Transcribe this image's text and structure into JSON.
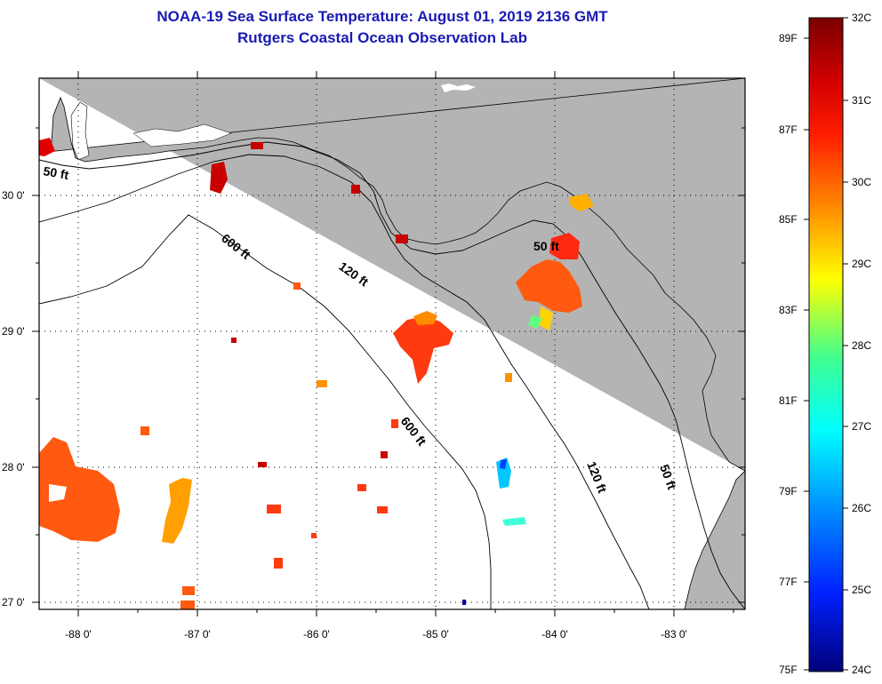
{
  "title": {
    "line1": "NOAA-19 Sea Surface Temperature:  August 01, 2019 2136 GMT",
    "line2": "Rutgers Coastal Ocean Observation Lab"
  },
  "map": {
    "lat_labels": [
      "30 0'",
      "29 0'",
      "28 0'",
      "27 0'"
    ],
    "lon_labels": [
      "-88 0'",
      "-87 0'",
      "-86 0'",
      "-85 0'",
      "-84 0'",
      "-83 0'"
    ],
    "contour_labels": [
      "50 ft",
      "600 ft",
      "120 ft",
      "50 ft",
      "600 ft",
      "120 ft",
      "50 ft"
    ],
    "colors": {
      "land": "#b4b4b4",
      "water": "#ffffff"
    }
  },
  "colorbar": {
    "fahrenheit_labels": [
      "89F",
      "87F",
      "85F",
      "83F",
      "81F",
      "79F",
      "77F",
      "75F"
    ],
    "celsius_labels": [
      "32C",
      "31C",
      "30C",
      "29C",
      "28C",
      "27C",
      "26C",
      "25C",
      "24C"
    ],
    "stops": [
      "#7a0000",
      "#ff0000",
      "#ff8000",
      "#ffff00",
      "#00ff80",
      "#00ffff",
      "#0080ff",
      "#0000ff",
      "#00007a"
    ]
  }
}
